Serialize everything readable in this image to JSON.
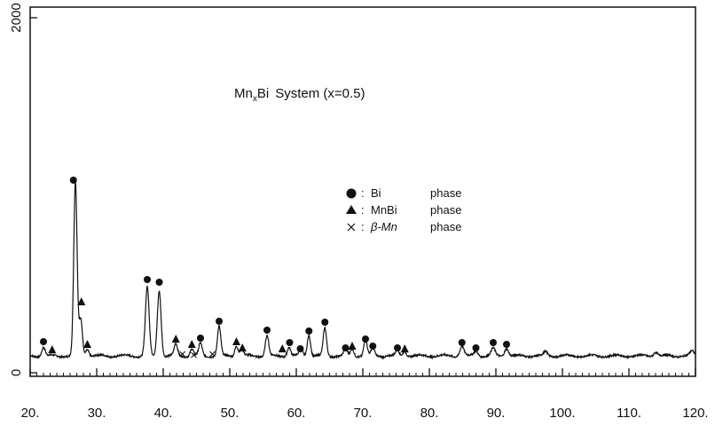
{
  "chart_data": {
    "type": "line",
    "title": "System (x=0.5)",
    "title_prefix": "Mn",
    "title_sub": "x",
    "title_mid": "Bi",
    "xlabel": "",
    "ylabel": "",
    "xlim": [
      20,
      120
    ],
    "ylim": [
      0,
      2000
    ],
    "x_ticks": [
      20,
      30,
      40,
      50,
      60,
      70,
      80,
      90,
      100,
      110,
      120
    ],
    "x_tick_labels": [
      "20.",
      "30.",
      "40.",
      "50.",
      "60.",
      "70.",
      "80.",
      "90.",
      "100.",
      "110.",
      "120."
    ],
    "y_ticks": [
      0,
      2000
    ],
    "y_tick_labels": [
      "0",
      "2000"
    ],
    "grid": false,
    "legend_position": "center-right",
    "legend": [
      {
        "marker": "circle",
        "label": "Bi",
        "phase": "phase"
      },
      {
        "marker": "triangle",
        "label": "MnBi",
        "phase": "phase"
      },
      {
        "marker": "cross",
        "label": "β-Mn",
        "phase": "phase"
      }
    ],
    "baseline": 95,
    "peaks": [
      {
        "x": 22.0,
        "height": 50,
        "width": 0.25
      },
      {
        "x": 26.8,
        "height": 975,
        "width": 0.25
      },
      {
        "x": 27.6,
        "height": 210,
        "width": 0.25
      },
      {
        "x": 28.6,
        "height": 40,
        "width": 0.25
      },
      {
        "x": 37.6,
        "height": 385,
        "width": 0.28
      },
      {
        "x": 39.4,
        "height": 370,
        "width": 0.28
      },
      {
        "x": 41.9,
        "height": 65,
        "width": 0.25
      },
      {
        "x": 44.3,
        "height": 40,
        "width": 0.25
      },
      {
        "x": 45.6,
        "height": 70,
        "width": 0.25
      },
      {
        "x": 48.4,
        "height": 165,
        "width": 0.25
      },
      {
        "x": 51.0,
        "height": 60,
        "width": 0.25
      },
      {
        "x": 51.8,
        "height": 40,
        "width": 0.25
      },
      {
        "x": 55.6,
        "height": 115,
        "width": 0.25
      },
      {
        "x": 58.9,
        "height": 50,
        "width": 0.25
      },
      {
        "x": 60.7,
        "height": 40,
        "width": 0.25
      },
      {
        "x": 61.9,
        "height": 120,
        "width": 0.25
      },
      {
        "x": 64.3,
        "height": 155,
        "width": 0.25
      },
      {
        "x": 67.4,
        "height": 40,
        "width": 0.25
      },
      {
        "x": 68.4,
        "height": 40,
        "width": 0.25
      },
      {
        "x": 70.4,
        "height": 90,
        "width": 0.25
      },
      {
        "x": 71.5,
        "height": 45,
        "width": 0.25
      },
      {
        "x": 75.2,
        "height": 30,
        "width": 0.25
      },
      {
        "x": 76.3,
        "height": 30,
        "width": 0.25
      },
      {
        "x": 84.9,
        "height": 55,
        "width": 0.3
      },
      {
        "x": 87.0,
        "height": 30,
        "width": 0.3
      },
      {
        "x": 89.6,
        "height": 40,
        "width": 0.3
      },
      {
        "x": 91.6,
        "height": 45,
        "width": 0.3
      },
      {
        "x": 97.5,
        "height": 20,
        "width": 0.3
      },
      {
        "x": 114.0,
        "height": 25,
        "width": 0.3
      },
      {
        "x": 119.5,
        "height": 25,
        "width": 0.3
      }
    ],
    "markers": [
      {
        "type": "circle",
        "x": 22.0,
        "y": 175
      },
      {
        "type": "circle",
        "x": 26.5,
        "y": 1085
      },
      {
        "type": "circle",
        "x": 37.6,
        "y": 525
      },
      {
        "type": "circle",
        "x": 39.4,
        "y": 510
      },
      {
        "type": "circle",
        "x": 45.6,
        "y": 195
      },
      {
        "type": "circle",
        "x": 48.4,
        "y": 290
      },
      {
        "type": "circle",
        "x": 55.6,
        "y": 240
      },
      {
        "type": "circle",
        "x": 59.0,
        "y": 170
      },
      {
        "type": "circle",
        "x": 60.6,
        "y": 135
      },
      {
        "type": "circle",
        "x": 61.9,
        "y": 235
      },
      {
        "type": "circle",
        "x": 64.3,
        "y": 285
      },
      {
        "type": "circle",
        "x": 67.4,
        "y": 140
      },
      {
        "type": "circle",
        "x": 70.4,
        "y": 190
      },
      {
        "type": "circle",
        "x": 71.5,
        "y": 150
      },
      {
        "type": "circle",
        "x": 75.2,
        "y": 140
      },
      {
        "type": "circle",
        "x": 84.9,
        "y": 170
      },
      {
        "type": "circle",
        "x": 87.0,
        "y": 140
      },
      {
        "type": "circle",
        "x": 89.6,
        "y": 170
      },
      {
        "type": "circle",
        "x": 91.6,
        "y": 160
      },
      {
        "type": "triangle",
        "x": 23.3,
        "y": 130
      },
      {
        "type": "triangle",
        "x": 27.7,
        "y": 400
      },
      {
        "type": "triangle",
        "x": 28.6,
        "y": 160
      },
      {
        "type": "triangle",
        "x": 41.9,
        "y": 190
      },
      {
        "type": "triangle",
        "x": 44.3,
        "y": 160
      },
      {
        "type": "triangle",
        "x": 51.0,
        "y": 175
      },
      {
        "type": "triangle",
        "x": 51.9,
        "y": 140
      },
      {
        "type": "triangle",
        "x": 57.9,
        "y": 135
      },
      {
        "type": "triangle",
        "x": 68.4,
        "y": 150
      },
      {
        "type": "triangle",
        "x": 76.3,
        "y": 135
      },
      {
        "type": "cross",
        "x": 42.9,
        "y": 105
      },
      {
        "type": "cross",
        "x": 44.6,
        "y": 100
      },
      {
        "type": "cross",
        "x": 47.4,
        "y": 105
      }
    ]
  }
}
